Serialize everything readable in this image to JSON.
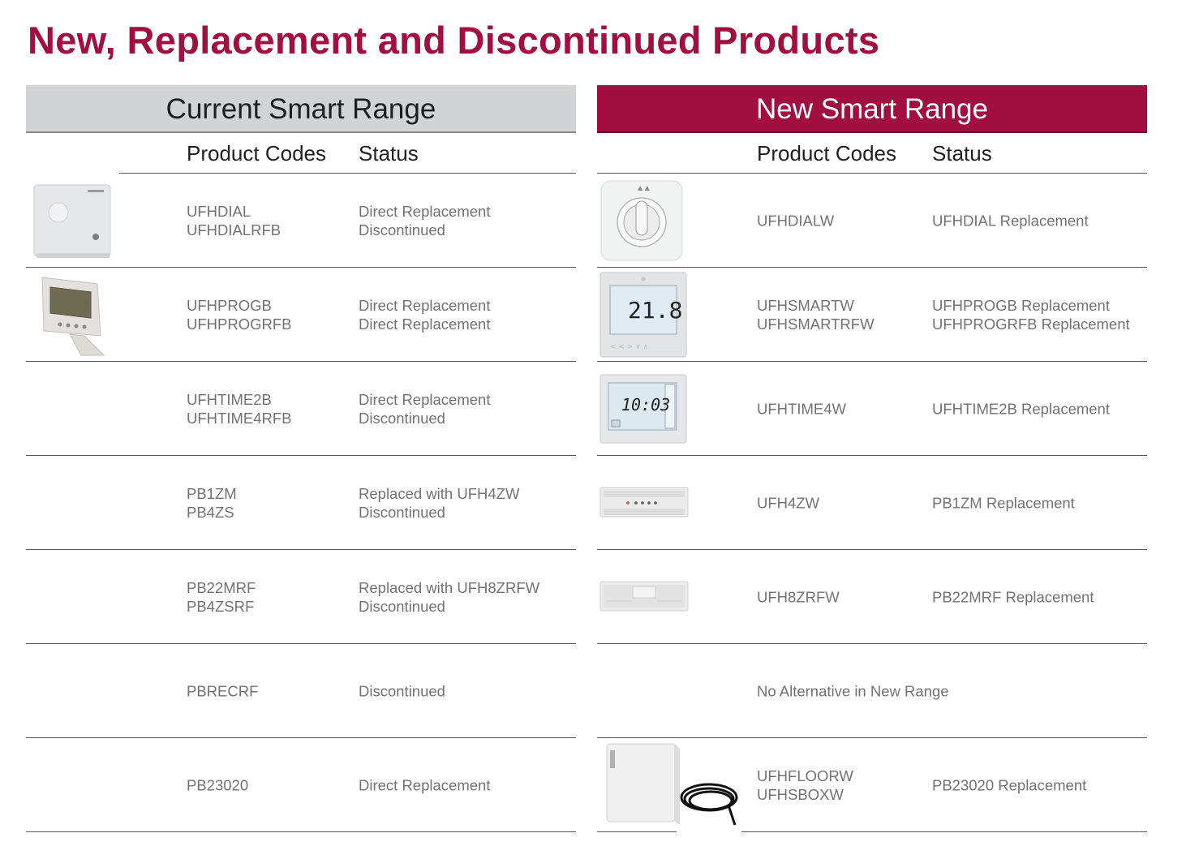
{
  "title": "New, Replacement and Discontinued Products",
  "current": {
    "heading": "Current Smart Range",
    "col_codes": "Product Codes",
    "col_status": "Status",
    "rows": [
      {
        "codes": [
          "UFHDIAL",
          "UFHDIALRFB"
        ],
        "status": [
          "Direct Replacement",
          "Discontinued"
        ],
        "image": "dial-thermostat"
      },
      {
        "codes": [
          "UFHPROGB",
          "UFHPROGRFB"
        ],
        "status": [
          "Direct Replacement",
          "Direct Replacement"
        ],
        "image": "programmable-thermostat-stand"
      },
      {
        "codes": [
          "UFHTIME2B",
          "UFHTIME4RFB"
        ],
        "status": [
          "Direct Replacement",
          "Discontinued"
        ]
      },
      {
        "codes": [
          "PB1ZM",
          "PB4ZS"
        ],
        "status": [
          "Replaced with UFH4ZW",
          "Discontinued"
        ]
      },
      {
        "codes": [
          "PB22MRF",
          "PB4ZSRF"
        ],
        "status": [
          "Replaced with UFH8ZRFW",
          "Discontinued"
        ]
      },
      {
        "codes": [
          "PBRECRF"
        ],
        "status": [
          "Discontinued"
        ]
      },
      {
        "codes": [
          "PB23020"
        ],
        "status": [
          "Direct Replacement"
        ]
      }
    ]
  },
  "new": {
    "heading": "New Smart Range",
    "col_codes": "Product Codes",
    "col_status": "Status",
    "rows": [
      {
        "codes": [
          "UFHDIALW"
        ],
        "status": [
          "UFHDIAL Replacement"
        ],
        "image": "dial-thermostat-white"
      },
      {
        "codes": [
          "UFHSMARTW",
          "UFHSMARTRFW"
        ],
        "status": [
          "UFHPROGB Replacement",
          "UFHPROGRFB Replacement"
        ],
        "image": "smart-thermostat",
        "display_temp": "21.8"
      },
      {
        "codes": [
          "UFHTIME4W"
        ],
        "status": [
          "UFHTIME2B Replacement"
        ],
        "image": "timer",
        "display_time": "10:03"
      },
      {
        "codes": [
          "UFH4ZW"
        ],
        "status": [
          "PB1ZM Replacement"
        ],
        "image": "wiring-centre"
      },
      {
        "codes": [
          "UFH8ZRFW"
        ],
        "status": [
          "PB22MRF Replacement"
        ],
        "image": "rf-wiring-centre"
      },
      {
        "codes": [
          "No Alternative in New Range"
        ],
        "status": []
      },
      {
        "codes": [
          "UFHFLOORW",
          "UFHSBOXW"
        ],
        "status": [
          "PB23020 Replacement"
        ],
        "image": "sensor-box-with-probe"
      }
    ]
  }
}
